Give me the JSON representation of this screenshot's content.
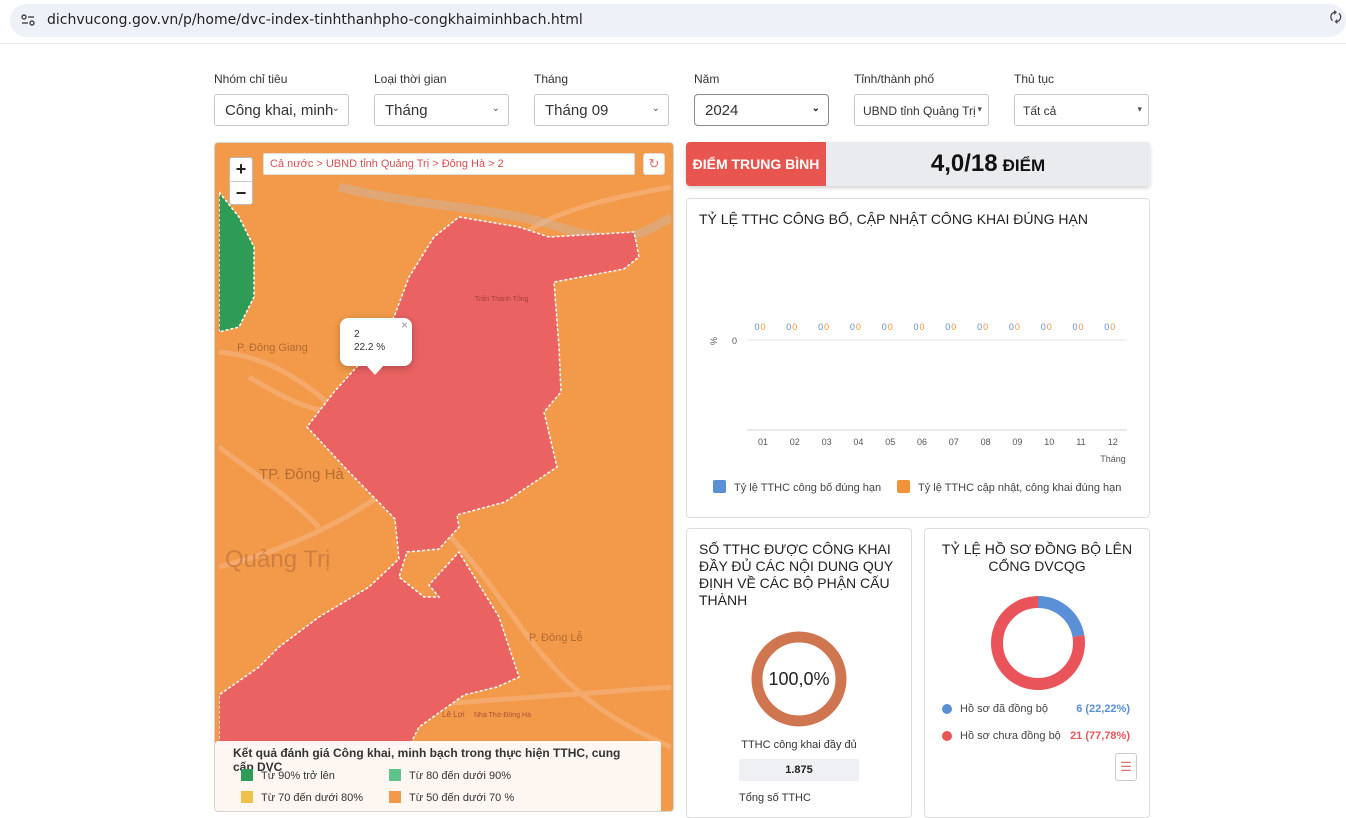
{
  "browser": {
    "url": "dichvucong.gov.vn/p/home/dvc-index-tinhthanhpho-congkhaiminhbach.html"
  },
  "filters": [
    {
      "label": "Nhóm chỉ tiêu",
      "value": "Công khai, minh"
    },
    {
      "label": "Loại thời gian",
      "value": "Tháng"
    },
    {
      "label": "Tháng",
      "value": "Tháng 09"
    },
    {
      "label": "Năm",
      "value": "2024"
    },
    {
      "label": "Tỉnh/thành phố",
      "value": "UBND tỉnh Quảng Trị"
    },
    {
      "label": "Thủ tục",
      "value": "Tất cả"
    }
  ],
  "map": {
    "zoom_in": "+",
    "zoom_out": "−",
    "breadcrumb": "Cả nước > UBND tỉnh Quảng Trị > Đông Hà > 2",
    "popup": {
      "name": "2",
      "value": "22.2 %",
      "close": "×"
    },
    "places": [
      "P. Đông Giang",
      "TP. Đông Hà",
      "Quảng Trị",
      "P. Đông Lễ",
      "Trần Thánh Tông",
      "Lê Lợi",
      "Nhà Thờ Đông Hà"
    ],
    "legend": {
      "title": "Kết quả đánh giá Công khai, minh bạch trong thực hiện TTHC, cung cấp DVC",
      "items": [
        {
          "label": "Từ 90% trở lên",
          "color": "#2e9b57"
        },
        {
          "label": "Từ 80 đến dưới 90%",
          "color": "#5fc48c"
        },
        {
          "label": "Từ 70 đến dưới 80%",
          "color": "#efc14a"
        },
        {
          "label": "Từ 50 đến dưới 70 %",
          "color": "#f39a4a"
        }
      ]
    },
    "colors": {
      "low": "#f39a4a",
      "red": "#ea6262",
      "green": "#2e9b57"
    }
  },
  "score": {
    "label": "ĐIỂM TRUNG BÌNH",
    "value": "4,0/18",
    "unit": "ĐIỂM"
  },
  "chart1": {
    "title": "TỶ LỆ TTHC CÔNG BỐ, CẬP NHẬT CÔNG KHAI ĐÚNG HẠN",
    "y_unit": "%",
    "x_axis_label": "Tháng",
    "months": [
      "01",
      "02",
      "03",
      "04",
      "05",
      "06",
      "07",
      "08",
      "09",
      "10",
      "11",
      "12"
    ],
    "legend": [
      {
        "label": "Tỷ lệ TTHC công bố đúng hạn",
        "color": "#5b8fd6"
      },
      {
        "label": "Tỷ lệ TTHC cập nhật, công khai đúng hạn",
        "color": "#f0943c"
      }
    ]
  },
  "chart_data": {
    "type": "bar",
    "categories": [
      "01",
      "02",
      "03",
      "04",
      "05",
      "06",
      "07",
      "08",
      "09",
      "10",
      "11",
      "12"
    ],
    "series": [
      {
        "name": "Tỷ lệ TTHC công bố đúng hạn",
        "values": [
          0,
          0,
          0,
          0,
          0,
          0,
          0,
          0,
          0,
          0,
          0,
          0
        ]
      },
      {
        "name": "Tỷ lệ TTHC cập nhật, công khai đúng hạn",
        "values": [
          0,
          0,
          0,
          0,
          0,
          0,
          0,
          0,
          0,
          0,
          0,
          0
        ]
      }
    ],
    "title": "TỶ LỆ TTHC CÔNG BỐ, CẬP NHẬT CÔNG KHAI ĐÚNG HẠN",
    "xlabel": "Tháng",
    "ylabel": "%",
    "yticks": [
      "0"
    ]
  },
  "card2": {
    "title": "SỐ TTHC ĐƯỢC CÔNG KHAI ĐẦY ĐỦ CÁC NỘI DUNG QUY ĐỊNH VỀ CÁC BỘ PHẬN CẤU THÀNH",
    "donut_value": "100,0%",
    "percent": 100,
    "color": "#cf7650",
    "sub1_label": "TTHC công khai đầy đủ",
    "sub1_value": "1.875",
    "sub2_label": "Tổng số TTHC"
  },
  "card3": {
    "title": "TỶ LỆ HỒ SƠ ĐỒNG BỘ LÊN CỔNG DVCQG",
    "items": [
      {
        "label": "Hồ sơ đã đồng bộ",
        "value": "6 (22,22%)",
        "share": 22.22,
        "color": "#5b8fd6"
      },
      {
        "label": "Hồ sơ chưa đồng bộ",
        "value": "21 (77,78%)",
        "share": 77.78,
        "color": "#e8545a"
      }
    ],
    "doc_icon": "document-icon"
  }
}
